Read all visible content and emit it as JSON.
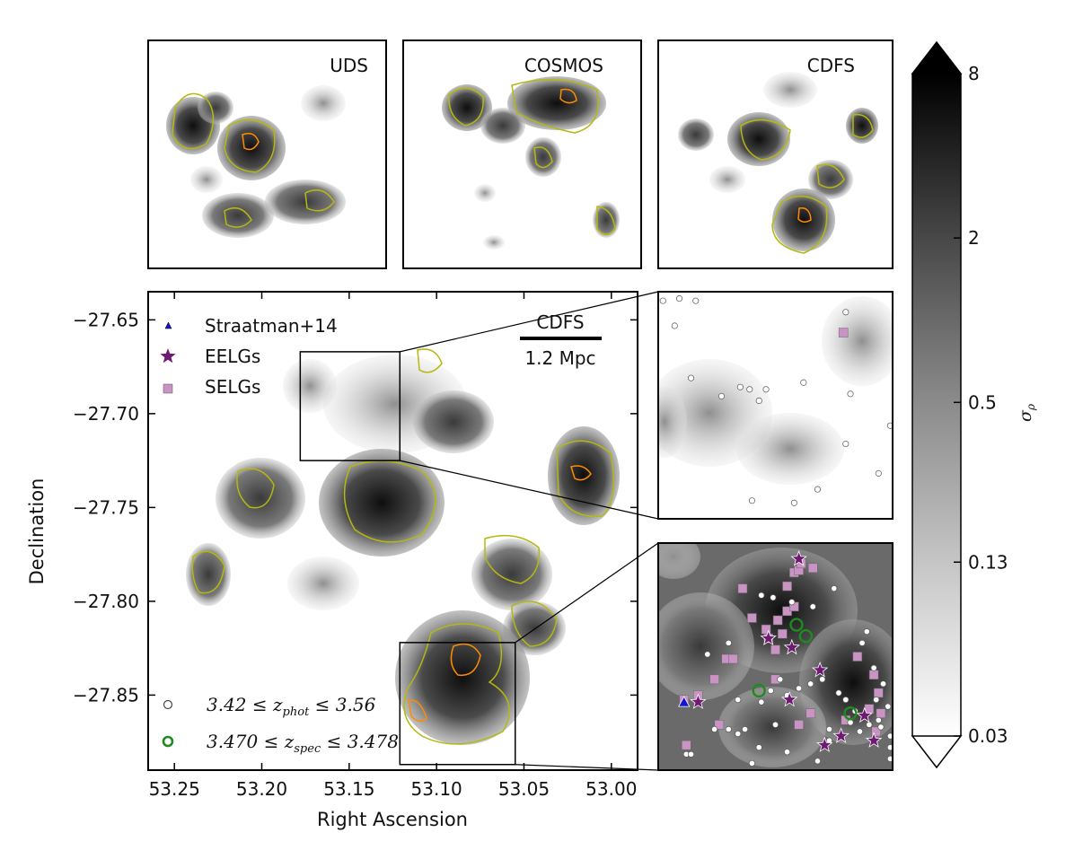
{
  "chart_data": [
    {
      "type": "heatmap",
      "panel": "top-left",
      "title": "UDS",
      "contour_colors": {
        "low": "#b5b80f",
        "high": "#ff8c00"
      }
    },
    {
      "type": "heatmap",
      "panel": "top-middle",
      "title": "COSMOS",
      "contour_colors": {
        "low": "#b5b80f",
        "high": "#ff8c00"
      }
    },
    {
      "type": "heatmap",
      "panel": "top-right",
      "title": "CDFS",
      "contour_colors": {
        "low": "#b5b80f",
        "high": "#ff8c00"
      }
    },
    {
      "type": "scatter",
      "panel": "main",
      "field_label": "CDFS",
      "scale_bar_label": "1.2 Mpc",
      "xlabel": "Right Ascension",
      "ylabel": "Declination",
      "xlim": [
        53.265,
        52.985
      ],
      "ylim": [
        -27.89,
        -27.635
      ],
      "x_ticks": [
        "53.25",
        "53.20",
        "53.15",
        "53.10",
        "53.05",
        "53.00"
      ],
      "x_tick_values": [
        53.25,
        53.2,
        53.15,
        53.1,
        53.05,
        53.0
      ],
      "y_ticks": [
        "−27.65",
        "−27.70",
        "−27.75",
        "−27.80",
        "−27.85"
      ],
      "y_tick_values": [
        -27.65,
        -27.7,
        -27.75,
        -27.8,
        -27.85
      ],
      "legend_placement": "top-left",
      "legend_bottom_placement": "bottom-left",
      "legend": [
        {
          "label": "Straatman+14",
          "marker": "triangle",
          "color": "#1515d0"
        },
        {
          "label": "EELGs",
          "marker": "star",
          "color": "#6e1a73"
        },
        {
          "label": "SELGs",
          "marker": "square",
          "color": "#c993c4"
        }
      ],
      "legend_bottom": [
        {
          "label": "3.42 ≤ z_phot ≤ 3.56",
          "marker": "circle-open",
          "color": "#444444"
        },
        {
          "label": "3.470 ≤ z_spec ≤ 3.478",
          "marker": "circle-open-thick",
          "color": "#1f8a1f"
        }
      ],
      "zoom_boxes": [
        {
          "ra": [
            53.178,
            53.121
          ],
          "dec": [
            -27.725,
            -27.667
          ],
          "inset": "upper"
        },
        {
          "ra": [
            53.121,
            53.055
          ],
          "dec": [
            -27.887,
            -27.822
          ],
          "inset": "lower"
        }
      ]
    },
    {
      "type": "scatter",
      "panel": "inset-upper",
      "points_phot": [
        [
          2,
          4
        ],
        [
          9,
          3
        ],
        [
          7,
          15
        ],
        [
          16,
          4
        ],
        [
          14,
          38
        ],
        [
          27,
          46
        ],
        [
          35,
          42
        ],
        [
          39,
          43
        ],
        [
          43,
          48
        ],
        [
          46,
          43
        ],
        [
          62,
          40
        ],
        [
          80,
          9
        ],
        [
          80,
          67
        ],
        [
          82,
          45
        ],
        [
          94,
          80
        ],
        [
          99,
          59
        ],
        [
          68,
          87
        ],
        [
          58,
          93
        ],
        [
          40,
          92
        ]
      ],
      "points_selg": [
        [
          79,
          18
        ]
      ]
    },
    {
      "type": "scatter",
      "panel": "inset-lower",
      "points_phot": [
        [
          12,
          93
        ],
        [
          14,
          93
        ],
        [
          21,
          49
        ],
        [
          24,
          82
        ],
        [
          30,
          44
        ],
        [
          30,
          82
        ],
        [
          34,
          84
        ],
        [
          34,
          69
        ],
        [
          44,
          23
        ],
        [
          49,
          24
        ],
        [
          57,
          26
        ],
        [
          66,
          28
        ],
        [
          75,
          20
        ],
        [
          87,
          44
        ],
        [
          89,
          39
        ],
        [
          84,
          74
        ],
        [
          86,
          83
        ],
        [
          92,
          55
        ],
        [
          93,
          69
        ],
        [
          95,
          81
        ],
        [
          96,
          62
        ],
        [
          99,
          85
        ],
        [
          98,
          72
        ],
        [
          99,
          90
        ],
        [
          99,
          95
        ],
        [
          94,
          78
        ],
        [
          90,
          80
        ],
        [
          82,
          79
        ],
        [
          80,
          69
        ],
        [
          77,
          66
        ],
        [
          73,
          82
        ],
        [
          70,
          60
        ],
        [
          65,
          62
        ],
        [
          60,
          64
        ],
        [
          55,
          67
        ],
        [
          52,
          60
        ],
        [
          50,
          80
        ],
        [
          48,
          65
        ],
        [
          44,
          70
        ],
        [
          43,
          90
        ],
        [
          37,
          82
        ],
        [
          40,
          97
        ],
        [
          55,
          92
        ],
        [
          68,
          96
        ],
        [
          73,
          87
        ]
      ],
      "points_selg": [
        [
          29,
          51
        ],
        [
          32,
          51
        ],
        [
          40,
          33
        ],
        [
          36,
          20
        ],
        [
          46,
          38
        ],
        [
          47,
          42
        ],
        [
          51,
          34
        ],
        [
          50,
          60
        ],
        [
          53,
          40
        ],
        [
          55,
          30
        ],
        [
          58,
          28
        ],
        [
          55,
          19
        ],
        [
          58,
          13
        ],
        [
          60,
          12
        ],
        [
          61,
          9
        ],
        [
          66,
          11
        ],
        [
          50,
          47
        ],
        [
          85,
          50
        ],
        [
          92,
          58
        ],
        [
          94,
          66
        ],
        [
          95,
          75
        ],
        [
          90,
          73
        ],
        [
          93,
          83
        ],
        [
          80,
          78
        ],
        [
          11,
          69
        ],
        [
          17,
          67
        ],
        [
          26,
          80
        ],
        [
          12,
          89
        ],
        [
          24,
          60
        ],
        [
          65,
          75
        ],
        [
          60,
          80
        ]
      ],
      "points_eelg": [
        [
          17,
          70
        ],
        [
          60,
          7
        ],
        [
          69,
          56
        ],
        [
          47,
          42
        ],
        [
          57,
          46
        ],
        [
          78,
          85
        ],
        [
          71,
          89
        ],
        [
          56,
          69
        ],
        [
          88,
          76
        ],
        [
          92,
          87
        ]
      ],
      "points_spec": [
        [
          59,
          36
        ],
        [
          63,
          41
        ],
        [
          43,
          65
        ],
        [
          82,
          75
        ]
      ],
      "points_straatman": [
        [
          11,
          70
        ]
      ]
    },
    {
      "type": "heatmap",
      "panel": "colorbar",
      "ylabel": "σ_ρ",
      "tick_labels": [
        "8",
        "2",
        "0.5",
        "0.13",
        "0.03"
      ],
      "tick_values": [
        8,
        2,
        0.5,
        0.13,
        0.03
      ],
      "scale": "log",
      "colormap": "gray_r",
      "extend": "both"
    }
  ]
}
